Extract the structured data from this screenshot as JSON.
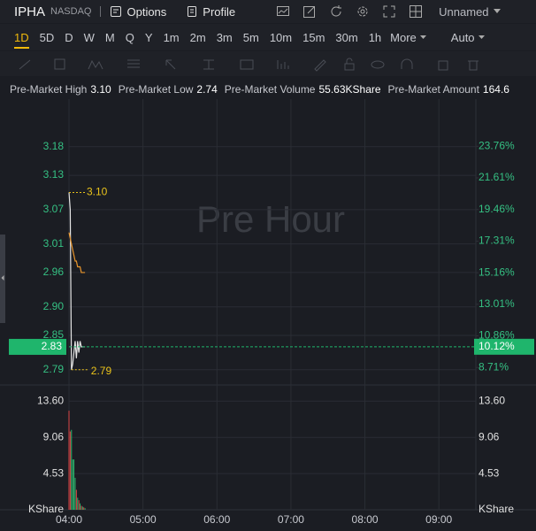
{
  "header": {
    "symbol": "IPHA",
    "exchange": "NASDAQ",
    "options": "Options",
    "profile": "Profile",
    "layout": "Unnamed"
  },
  "toolbar": {
    "intervals": [
      "1D",
      "5D",
      "D",
      "W",
      "M",
      "Q",
      "Y",
      "1m",
      "2m",
      "3m",
      "5m",
      "10m",
      "15m",
      "30m",
      "1h"
    ],
    "active": 0,
    "more": "More",
    "scale": "Auto"
  },
  "stats": [
    {
      "label": "Pre-Market High",
      "value": "3.10"
    },
    {
      "label": "Pre-Market Low",
      "value": "2.74"
    },
    {
      "label": "Pre-Market Volume",
      "value": "55.63KShare"
    },
    {
      "label": "Pre-Market Amount",
      "value": "164.6"
    }
  ],
  "watermark": "Pre Hour",
  "chart_data": [
    {
      "type": "line",
      "x": [
        "04:00",
        "04:01",
        "04:02",
        "04:03",
        "04:04",
        "04:05",
        "04:06",
        "04:07",
        "04:08",
        "04:09",
        "04:10",
        "04:11",
        "04:12",
        "04:13"
      ],
      "series": [
        {
          "color": "#e6e6e6",
          "values": [
            3.1,
            3.07,
            2.79,
            2.8,
            2.82,
            2.84,
            2.81,
            2.84,
            2.82,
            2.84,
            2.83,
            2.83,
            2.83,
            2.83
          ]
        },
        {
          "color": "#e8952c",
          "values": [
            3.03,
            3.02,
            3.01,
            3.0,
            2.99,
            2.98,
            2.98,
            2.97,
            2.97,
            2.97,
            2.96,
            2.96,
            2.96,
            2.96
          ]
        }
      ],
      "xlim": [
        "04:00",
        "09:30"
      ],
      "xticks": [
        "04:00",
        "05:00",
        "06:00",
        "07:00",
        "08:00",
        "09:00"
      ],
      "ylim": [
        2.768,
        3.257
      ],
      "yticks": [
        3.18,
        3.13,
        3.07,
        3.01,
        2.96,
        {
          "value": 2.9,
          "label": "2.90"
        },
        2.85,
        2.79
      ],
      "y2lim": [
        7.7,
        26.73
      ],
      "y2ticks": [
        {
          "value": 23.76,
          "label": "23.76%"
        },
        {
          "value": 21.61,
          "label": "21.61%"
        },
        {
          "value": 19.46,
          "label": "19.46%"
        },
        {
          "value": 17.31,
          "label": "17.31%"
        },
        {
          "value": 15.16,
          "label": "15.16%"
        },
        {
          "value": 13.01,
          "label": "13.01%"
        },
        {
          "value": 10.86,
          "label": "10.86%"
        },
        {
          "value": 8.71,
          "label": "8.71%"
        }
      ],
      "last": {
        "value": 2.83,
        "change": {
          "value": 10.12,
          "label": "10.12%"
        },
        "color": "#1fb56c"
      },
      "high": {
        "x": "04:00",
        "value": 3.1,
        "label": "3.10"
      },
      "low": {
        "x": "04:02",
        "value": 2.79
      },
      "marker_color": "#e9c21b",
      "grid": true
    },
    {
      "type": "bar",
      "x": [
        "04:00",
        "04:01",
        "04:02",
        "04:03",
        "04:04",
        "04:05",
        "04:06",
        "04:07",
        "04:08",
        "04:09",
        "04:10",
        "04:11",
        "04:12",
        "04:13"
      ],
      "values": [
        12.4,
        9.8,
        10.0,
        6.3,
        6.3,
        4.0,
        2.5,
        1.5,
        1.2,
        0.8,
        0.5,
        0.4,
        0.3,
        0.2
      ],
      "colors": [
        "#e04848",
        "#e04848",
        "#2fb86f",
        "#2fb86f",
        "#2fb86f",
        "#2fb86f",
        "#e04848",
        "#2fb86f",
        "#e04848",
        "#2fb86f",
        "#e04848",
        "#2fb86f",
        "#e04848",
        "#2fb86f"
      ],
      "ylim": [
        0,
        15.4
      ],
      "yticks": [
        {
          "value": 13.6,
          "label": "13.60"
        },
        9.06,
        4.53
      ],
      "unit": "KShare"
    }
  ]
}
